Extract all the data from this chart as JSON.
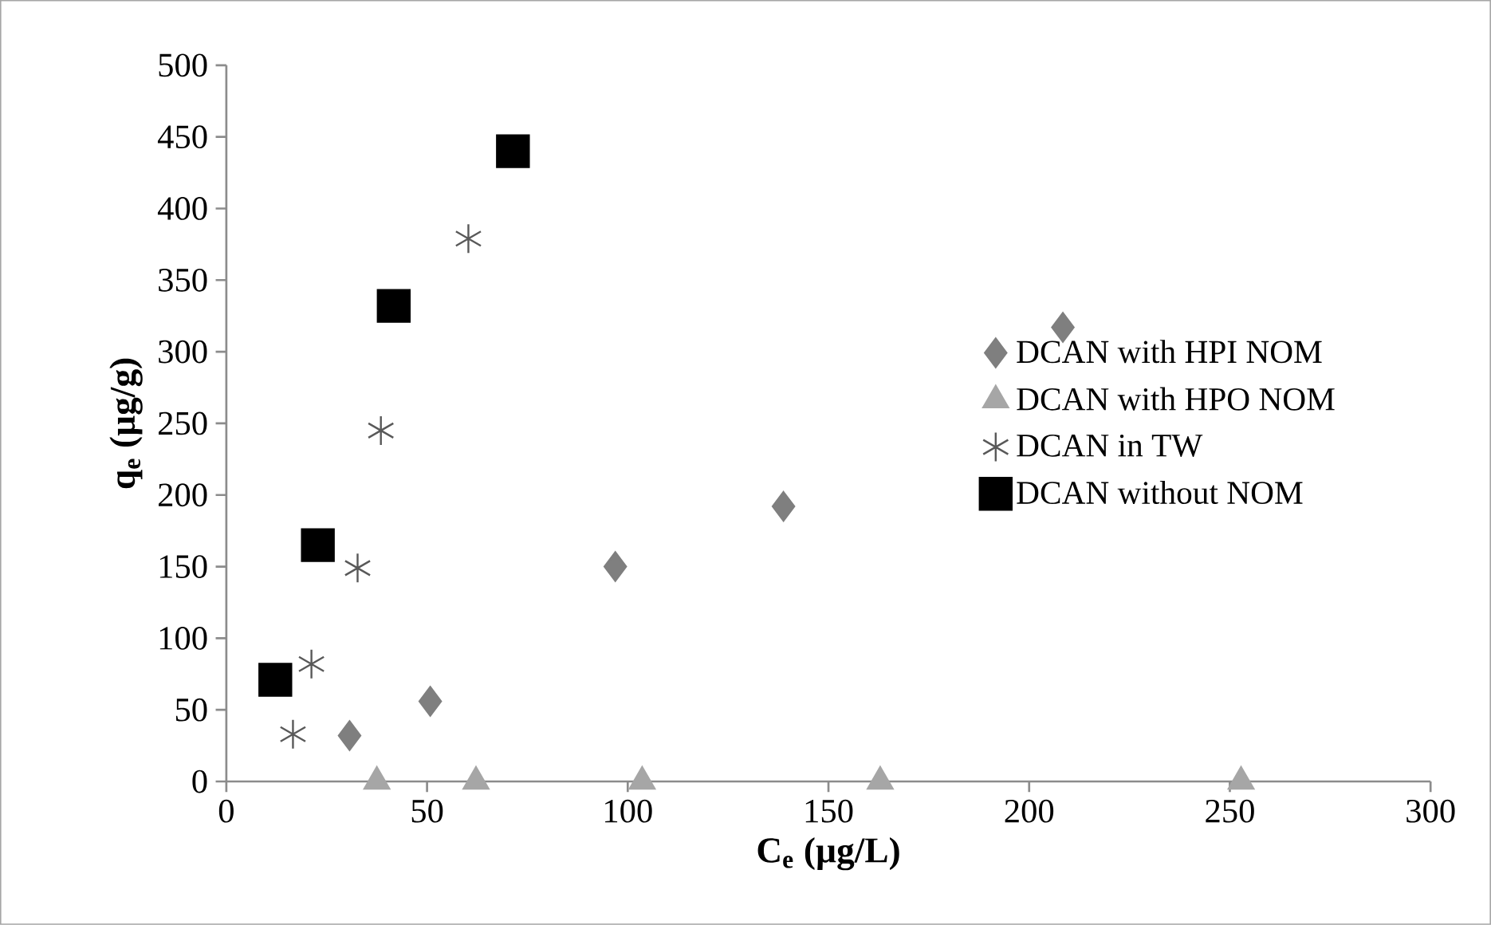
{
  "chart_data": {
    "type": "scatter",
    "xlabel": "C$_{e}$ (µg/L)",
    "ylabel": "q$_{e}$ (µg/g)",
    "xlim": [
      0,
      300
    ],
    "ylim": [
      0,
      500
    ],
    "xticks": [
      0,
      50,
      100,
      150,
      200,
      250,
      300
    ],
    "yticks": [
      0,
      50,
      100,
      150,
      200,
      250,
      300,
      350,
      400,
      450,
      500
    ],
    "grid": false,
    "legend": "right",
    "series": [
      {
        "name": "DCAN with HPI NOM",
        "color": "#7f7f7f",
        "marker": "diamond",
        "x": [
          30.7,
          50.8,
          96.9,
          138.8,
          208.4
        ],
        "values": [
          32,
          56,
          150,
          192,
          317
        ]
      },
      {
        "name": "DCAN with HPO NOM",
        "color": "#a6a6a6",
        "marker": "triangle",
        "x": [
          37.5,
          62.2,
          103.6,
          162.9,
          252.8
        ],
        "values": [
          0,
          0,
          0,
          0,
          0
        ]
      },
      {
        "name": "DCAN in TW",
        "color": "#595959",
        "marker": "cross",
        "x": [
          16.6,
          21.2,
          32.7,
          38.5,
          60.3
        ],
        "values": [
          33,
          82,
          149,
          245,
          379
        ]
      },
      {
        "name": "DCAN without NOM",
        "color": "#000000",
        "marker": "square",
        "x": [
          12.2,
          22.8,
          41.7,
          71.4
        ],
        "values": [
          71,
          165,
          332,
          440
        ]
      }
    ]
  }
}
